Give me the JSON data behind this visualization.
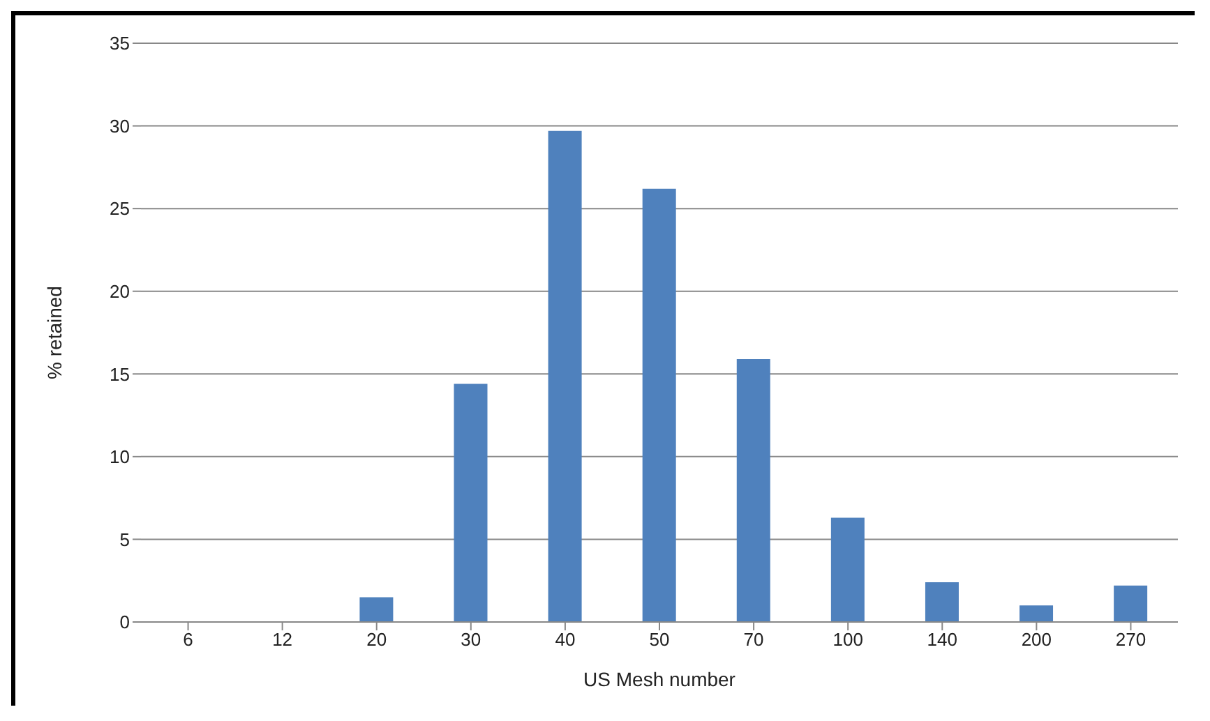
{
  "chart_data": {
    "type": "bar",
    "xlabel": "US Mesh number",
    "ylabel": "% retained",
    "categories": [
      "6",
      "12",
      "20",
      "30",
      "40",
      "50",
      "70",
      "100",
      "140",
      "200",
      "270"
    ],
    "values": [
      0,
      0,
      1.5,
      14.4,
      29.7,
      26.2,
      15.9,
      6.3,
      2.4,
      1.0,
      2.2
    ],
    "color": "#4f81bd",
    "ylim": [
      0,
      35
    ],
    "yticks": [
      0,
      5,
      10,
      15,
      20,
      25,
      30,
      35
    ],
    "grid": "y"
  }
}
